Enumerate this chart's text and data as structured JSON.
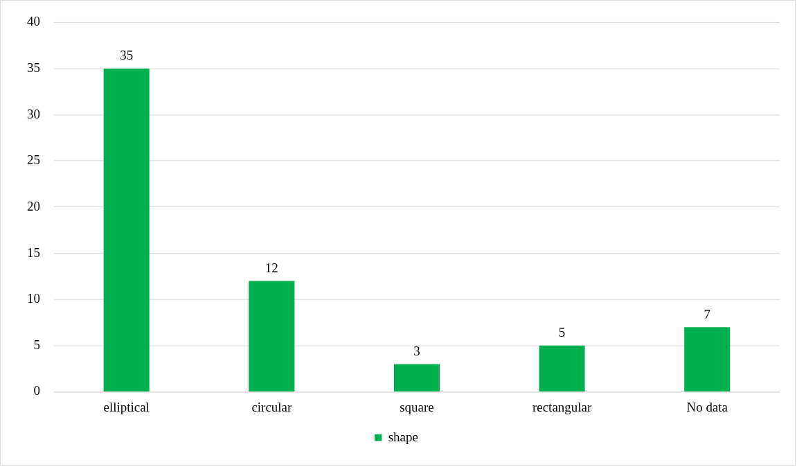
{
  "chart_data": {
    "type": "bar",
    "categories": [
      "elliptical",
      "circular",
      "square",
      "rectangular",
      "No data"
    ],
    "series": [
      {
        "name": "shape",
        "color": "#00b050",
        "values": [
          35,
          12,
          3,
          5,
          7
        ]
      }
    ],
    "ylim": [
      0,
      40
    ],
    "yticks": [
      0,
      5,
      10,
      15,
      20,
      25,
      30,
      35,
      40
    ],
    "grid": "y",
    "legend": "bottom",
    "data_labels": true
  }
}
